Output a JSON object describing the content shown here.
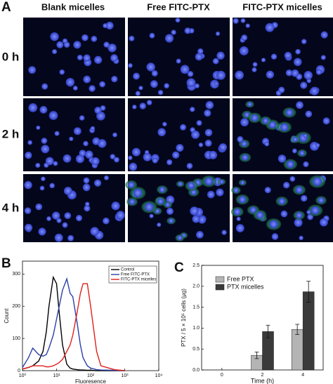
{
  "panel_a": {
    "label": "A",
    "columns": [
      "Blank micelles",
      "Free FITC-PTX",
      "FITC-PTX micelles"
    ],
    "rows": [
      "0 h",
      "2 h",
      "4 h"
    ]
  },
  "chart_data": [
    {
      "type": "line",
      "panel_label": "B",
      "xlabel": "Fluoresence",
      "ylabel": "Count",
      "log_x": true,
      "x": [
        1,
        1.5,
        2,
        3,
        4,
        5,
        6,
        8,
        10,
        12,
        15,
        20,
        25,
        30,
        40,
        50,
        60,
        80,
        100,
        150,
        200,
        500,
        1000
      ],
      "xlim": [
        1,
        10000
      ],
      "xticks": [
        {
          "value": 1,
          "label": "10⁰"
        },
        {
          "value": 10,
          "label": "10¹"
        },
        {
          "value": 100,
          "label": "10²"
        },
        {
          "value": 1000,
          "label": "10³"
        },
        {
          "value": 10000,
          "label": "10⁴"
        }
      ],
      "ylim": [
        0,
        340
      ],
      "yticks": [
        0,
        100,
        200,
        300
      ],
      "legend": "upper right",
      "series": [
        {
          "name": "Control",
          "color": "#000000",
          "values": [
            5,
            10,
            15,
            30,
            60,
            120,
            200,
            290,
            270,
            180,
            80,
            20,
            8,
            5,
            3,
            2,
            2,
            1,
            1,
            0,
            0,
            0,
            0
          ]
        },
        {
          "name": "Free FITC-PTX",
          "color": "#2b3fa8",
          "values": [
            10,
            40,
            70,
            50,
            45,
            50,
            70,
            110,
            160,
            200,
            250,
            285,
            240,
            230,
            150,
            80,
            40,
            15,
            8,
            3,
            2,
            1,
            0
          ]
        },
        {
          "name": "FITC-PTX micelles",
          "color": "#e0201b",
          "values": [
            5,
            10,
            15,
            15,
            15,
            12,
            12,
            15,
            20,
            25,
            35,
            60,
            80,
            110,
            180,
            240,
            270,
            270,
            200,
            60,
            15,
            3,
            0
          ]
        }
      ]
    },
    {
      "type": "bar",
      "panel_label": "C",
      "xlabel": "Time (h)",
      "ylabel": "PTX / 5 × 10⁵ cells (μg)",
      "categories": [
        "0",
        "2",
        "4"
      ],
      "ylim": [
        0,
        2.5
      ],
      "yticks": [
        {
          "value": 0,
          "label": "0.0"
        },
        {
          "value": 0.5,
          "label": "0.5"
        },
        {
          "value": 1,
          "label": "1.0"
        },
        {
          "value": 1.5,
          "label": "1.5"
        },
        {
          "value": 2,
          "label": "2.0"
        },
        {
          "value": 2.5,
          "label": "2.5"
        }
      ],
      "legend": "upper left",
      "series": [
        {
          "name": "Free PTX",
          "color": "#b4b4b4",
          "values": [
            0,
            0.35,
            0.97
          ],
          "errors": [
            0,
            0.08,
            0.12
          ]
        },
        {
          "name": "PTX micelles",
          "color": "#3a3a3a",
          "values": [
            0,
            0.92,
            1.87
          ],
          "errors": [
            0,
            0.15,
            0.25
          ]
        }
      ]
    }
  ]
}
